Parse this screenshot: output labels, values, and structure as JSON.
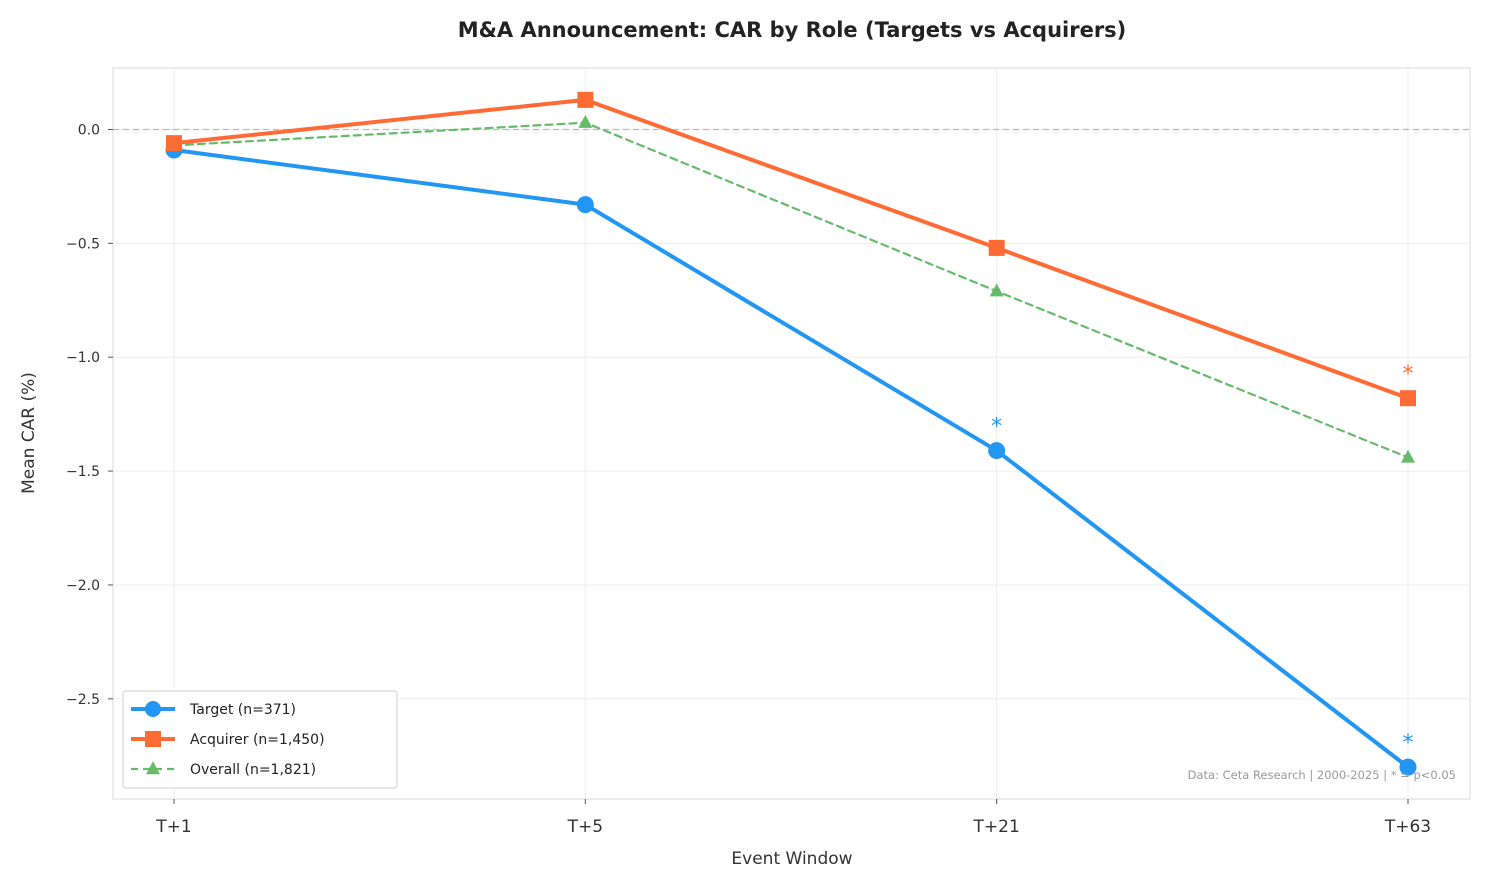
{
  "chart_data": {
    "type": "line",
    "title": "M&A Announcement: CAR by Role (Targets vs Acquirers)",
    "xlabel": "Event Window",
    "ylabel": "Mean CAR (%)",
    "categories": [
      "T+1",
      "T+5",
      "T+21",
      "T+63"
    ],
    "ylim": [
      -2.94,
      0.27
    ],
    "yticks": [
      0.0,
      -0.5,
      -1.0,
      -1.5,
      -2.0,
      -2.5
    ],
    "ytick_labels": [
      "0.0",
      "−0.5",
      "−1.0",
      "−1.5",
      "−2.0",
      "−2.5"
    ],
    "grid": true,
    "zero_line": true,
    "legend_position": "bottom-left",
    "significance_marker": "*",
    "series": [
      {
        "name": "Target (n=371)",
        "color": "#2196F3",
        "marker": "circle",
        "line_style": "solid",
        "values": [
          -0.09,
          -0.33,
          -1.41,
          -2.8
        ],
        "significant": [
          false,
          false,
          true,
          true
        ]
      },
      {
        "name": "Acquirer (n=1,450)",
        "color": "#FF6B35",
        "marker": "square",
        "line_style": "solid",
        "values": [
          -0.06,
          0.13,
          -0.52,
          -1.18
        ],
        "significant": [
          false,
          false,
          false,
          true
        ]
      },
      {
        "name": "Overall (n=1,821)",
        "color": "#66BB6A",
        "marker": "triangle",
        "line_style": "dashed",
        "values": [
          -0.07,
          0.03,
          -0.71,
          -1.44
        ],
        "significant": [
          false,
          false,
          false,
          false
        ]
      }
    ],
    "annotation": "Data: Ceta Research | 2000-2025 | * = p<0.05"
  }
}
